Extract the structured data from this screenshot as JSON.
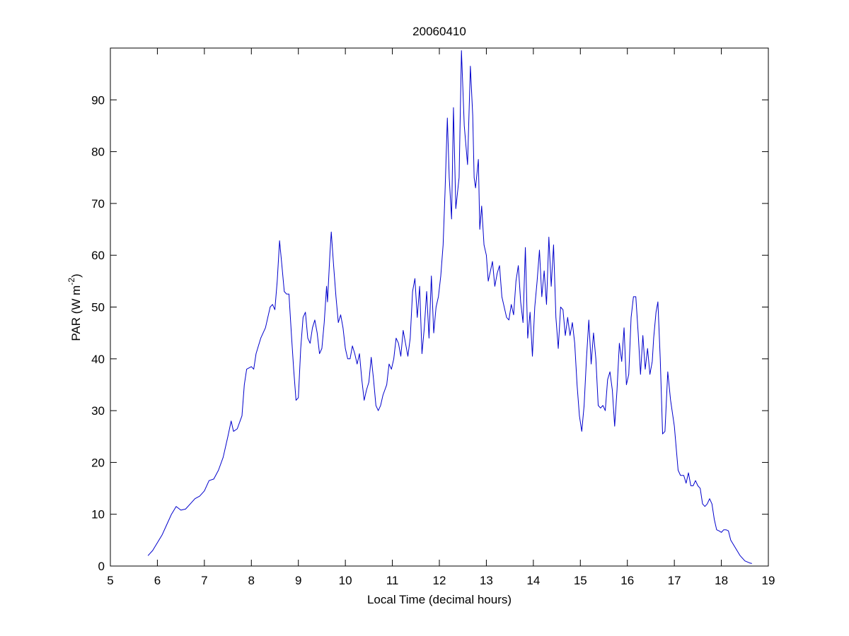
{
  "chart_data": {
    "type": "line",
    "title": "20060410",
    "xlabel": "Local Time (decimal hours)",
    "ylabel": {
      "text": "PAR (W m",
      "superscript": "-2",
      "suffix": ")"
    },
    "x": [
      5.8,
      5.9,
      6.0,
      6.1,
      6.2,
      6.3,
      6.4,
      6.5,
      6.6,
      6.7,
      6.8,
      6.9,
      7.0,
      7.1,
      7.2,
      7.3,
      7.4,
      7.5,
      7.57,
      7.62,
      7.7,
      7.8,
      7.85,
      7.9,
      8.0,
      8.05,
      8.1,
      8.2,
      8.3,
      8.4,
      8.45,
      8.5,
      8.55,
      8.6,
      8.65,
      8.7,
      8.75,
      8.8,
      8.85,
      8.9,
      8.95,
      9.0,
      9.05,
      9.1,
      9.15,
      9.2,
      9.25,
      9.3,
      9.35,
      9.4,
      9.45,
      9.5,
      9.55,
      9.6,
      9.62,
      9.67,
      9.7,
      9.75,
      9.8,
      9.85,
      9.9,
      9.95,
      10.0,
      10.05,
      10.1,
      10.15,
      10.2,
      10.25,
      10.3,
      10.35,
      10.4,
      10.45,
      10.5,
      10.55,
      10.6,
      10.65,
      10.7,
      10.75,
      10.8,
      10.88,
      10.93,
      10.98,
      11.03,
      11.08,
      11.13,
      11.18,
      11.23,
      11.28,
      11.33,
      11.38,
      11.43,
      11.48,
      11.53,
      11.58,
      11.63,
      11.68,
      11.73,
      11.78,
      11.83,
      11.88,
      11.93,
      11.98,
      12.03,
      12.08,
      12.12,
      12.17,
      12.21,
      12.26,
      12.3,
      12.35,
      12.42,
      12.47,
      12.53,
      12.6,
      12.66,
      12.71,
      12.74,
      12.77,
      12.83,
      12.86,
      12.9,
      12.95,
      13.0,
      13.04,
      13.13,
      13.18,
      13.23,
      13.28,
      13.33,
      13.38,
      13.43,
      13.48,
      13.53,
      13.58,
      13.63,
      13.68,
      13.73,
      13.78,
      13.83,
      13.88,
      13.93,
      13.98,
      14.03,
      14.08,
      14.13,
      14.18,
      14.23,
      14.28,
      14.33,
      14.38,
      14.43,
      14.48,
      14.53,
      14.58,
      14.63,
      14.68,
      14.73,
      14.78,
      14.83,
      14.88,
      14.93,
      14.98,
      15.03,
      15.08,
      15.13,
      15.18,
      15.23,
      15.28,
      15.33,
      15.38,
      15.43,
      15.48,
      15.53,
      15.58,
      15.63,
      15.68,
      15.73,
      15.78,
      15.83,
      15.88,
      15.93,
      15.98,
      16.03,
      16.08,
      16.13,
      16.18,
      16.23,
      16.28,
      16.33,
      16.38,
      16.43,
      16.48,
      16.53,
      16.56,
      16.61,
      16.65,
      16.7,
      16.75,
      16.8,
      16.86,
      16.92,
      17.0,
      17.08,
      17.13,
      17.2,
      17.25,
      17.3,
      17.35,
      17.4,
      17.45,
      17.5,
      17.55,
      17.6,
      17.65,
      17.7,
      17.75,
      17.8,
      17.85,
      17.9,
      17.95,
      18.0,
      18.05,
      18.1,
      18.15,
      18.2,
      18.3,
      18.4,
      18.5,
      18.6,
      18.65
    ],
    "series": [
      {
        "name": "PAR",
        "color": "#0000cc",
        "values": [
          2,
          3,
          4.5,
          6,
          8,
          10,
          11.5,
          10.8,
          11,
          12,
          13,
          13.5,
          14.5,
          16.5,
          16.8,
          18.5,
          21,
          25,
          28,
          26,
          26.5,
          29,
          35,
          38,
          38.5,
          38,
          41,
          44,
          46,
          50,
          50.5,
          49.5,
          55,
          62.8,
          58,
          53,
          52.5,
          52.5,
          45,
          38,
          32,
          32.5,
          42,
          48,
          49,
          44,
          43,
          46,
          47.5,
          45,
          41,
          42,
          47,
          54,
          51,
          60,
          64.5,
          58,
          52,
          47,
          48.5,
          46,
          42,
          40,
          40,
          42.5,
          41,
          39,
          41,
          36,
          32,
          34,
          35.5,
          40.3,
          36,
          31,
          30,
          31,
          33,
          35,
          39,
          38,
          40,
          44,
          43,
          40.5,
          45.5,
          43,
          40.5,
          44,
          53,
          55.5,
          48,
          54,
          41,
          46,
          53,
          44,
          56,
          45,
          50,
          52,
          56,
          62,
          72,
          86.5,
          75,
          67,
          88.5,
          69,
          75,
          99.5,
          85,
          77.5,
          96.5,
          87,
          75,
          73,
          78.5,
          65,
          69.5,
          62,
          60,
          55,
          58.8,
          54,
          56.5,
          58,
          52,
          50,
          48,
          47.5,
          50.5,
          48.5,
          55,
          58,
          51,
          47,
          61.5,
          44,
          49,
          40.5,
          50,
          55,
          61,
          52,
          57,
          50.5,
          63.5,
          54,
          62,
          48,
          42,
          50,
          49.5,
          44.5,
          48,
          44.5,
          47,
          43,
          35,
          29,
          26,
          31,
          40,
          47.5,
          39,
          45,
          40,
          31,
          30.5,
          31,
          30,
          36,
          37.5,
          34,
          27,
          34,
          43,
          39.5,
          46,
          35,
          37,
          48,
          52,
          52,
          45,
          37,
          44.5,
          38,
          42,
          37,
          39.5,
          44,
          49,
          51,
          40,
          25.5,
          26,
          37.5,
          32,
          27,
          18.5,
          17.5,
          17.5,
          16,
          18,
          15.5,
          15.5,
          16.5,
          15.5,
          15,
          12,
          11.5,
          12,
          13,
          12,
          9,
          7,
          6.8,
          6.5,
          7,
          7,
          6.8,
          5,
          3.5,
          2,
          1,
          0.6,
          0.5
        ]
      }
    ],
    "xlim": [
      5,
      19
    ],
    "xticks": [
      5,
      6,
      7,
      8,
      9,
      10,
      11,
      12,
      13,
      14,
      15,
      16,
      17,
      18,
      19
    ],
    "ylim": [
      0,
      100
    ],
    "yticks": [
      0,
      10,
      20,
      30,
      40,
      50,
      60,
      70,
      80,
      90
    ],
    "grid": false
  }
}
